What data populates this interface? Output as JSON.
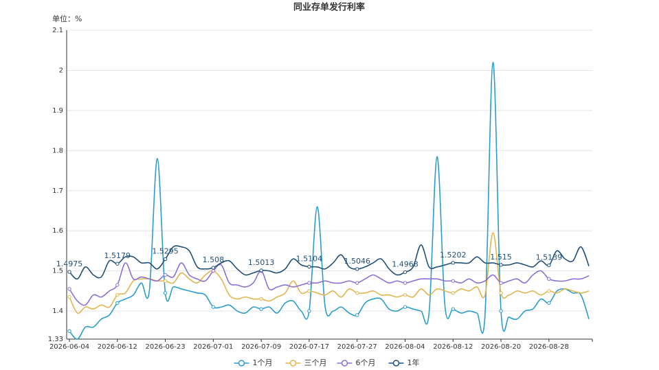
{
  "chart_data": {
    "type": "line",
    "title": "同业存单发行利率",
    "unit_label": "单位：%",
    "categories": [
      "2026-06-04",
      null,
      null,
      null,
      null,
      null,
      "2026-06-12",
      null,
      null,
      null,
      null,
      null,
      "2026-06-23",
      null,
      null,
      null,
      null,
      null,
      "2026-07-01",
      null,
      null,
      null,
      null,
      null,
      "2026-07-09",
      null,
      null,
      null,
      null,
      null,
      "2026-07-17",
      null,
      null,
      null,
      null,
      null,
      "2026-07-27",
      null,
      null,
      null,
      null,
      null,
      "2026-08-04",
      null,
      null,
      null,
      null,
      null,
      "2026-08-12",
      null,
      null,
      null,
      null,
      null,
      "2026-08-20",
      null,
      null,
      null,
      null,
      null,
      "2026-08-28",
      null,
      null,
      null,
      null,
      null
    ],
    "ylim": [
      1.33,
      2.1
    ],
    "yticks": [
      1.33,
      1.4,
      1.5,
      1.6,
      1.7,
      1.8,
      1.9,
      2,
      2.1
    ],
    "grid": true,
    "smooth": true,
    "legend": "bottom",
    "series": [
      {
        "name": "1个月",
        "color": "#2a9ccc",
        "values": [
          1.35,
          1.33,
          1.36,
          1.36,
          1.38,
          1.39,
          1.42,
          1.43,
          1.44,
          1.47,
          1.45,
          1.78,
          1.445,
          1.46,
          1.455,
          1.45,
          1.445,
          1.44,
          1.41,
          1.41,
          1.415,
          1.4,
          1.395,
          1.41,
          1.405,
          1.41,
          1.395,
          1.42,
          1.425,
          1.4,
          1.4,
          1.66,
          1.41,
          1.4,
          1.41,
          1.395,
          1.39,
          1.42,
          1.43,
          1.43,
          1.405,
          1.4,
          1.41,
          1.405,
          1.4,
          1.395,
          1.785,
          1.41,
          1.405,
          1.395,
          1.4,
          1.395,
          1.39,
          2.02,
          1.4,
          1.385,
          1.38,
          1.4,
          1.405,
          1.43,
          1.42,
          1.45,
          1.455,
          1.445,
          1.44,
          1.38
        ]
      },
      {
        "name": "三个月",
        "color": "#e2b44c",
        "values": [
          1.435,
          1.395,
          1.41,
          1.405,
          1.415,
          1.41,
          1.44,
          1.445,
          1.475,
          1.48,
          1.48,
          1.475,
          1.475,
          1.47,
          1.495,
          1.48,
          1.47,
          1.49,
          1.5,
          1.48,
          1.44,
          1.43,
          1.435,
          1.43,
          1.43,
          1.425,
          1.435,
          1.445,
          1.475,
          1.445,
          1.45,
          1.445,
          1.44,
          1.45,
          1.435,
          1.455,
          1.445,
          1.445,
          1.45,
          1.44,
          1.44,
          1.435,
          1.44,
          1.435,
          1.455,
          1.44,
          1.455,
          1.45,
          1.445,
          1.455,
          1.45,
          1.46,
          1.44,
          1.595,
          1.445,
          1.44,
          1.45,
          1.445,
          1.45,
          1.44,
          1.45,
          1.445,
          1.455,
          1.45,
          1.445,
          1.45
        ]
      },
      {
        "name": "6个月",
        "color": "#8b6fd3",
        "values": [
          1.455,
          1.425,
          1.415,
          1.44,
          1.435,
          1.45,
          1.465,
          1.52,
          1.48,
          1.485,
          1.48,
          1.475,
          1.49,
          1.485,
          1.52,
          1.49,
          1.48,
          1.475,
          1.5,
          1.515,
          1.47,
          1.465,
          1.46,
          1.47,
          1.5,
          1.455,
          1.46,
          1.465,
          1.46,
          1.465,
          1.47,
          1.47,
          1.475,
          1.47,
          1.47,
          1.475,
          1.47,
          1.48,
          1.49,
          1.48,
          1.47,
          1.475,
          1.47,
          1.475,
          1.48,
          1.48,
          1.48,
          1.475,
          1.475,
          1.47,
          1.48,
          1.47,
          1.475,
          1.49,
          1.47,
          1.475,
          1.48,
          1.47,
          1.49,
          1.5,
          1.48,
          1.475,
          1.475,
          1.48,
          1.48,
          1.488
        ]
      },
      {
        "name": "1年",
        "color": "#1f4f78",
        "values": [
          1.4975,
          1.48,
          1.51,
          1.49,
          1.485,
          1.525,
          1.5179,
          1.535,
          1.535,
          1.52,
          1.52,
          1.505,
          1.5295,
          1.56,
          1.56,
          1.55,
          1.51,
          1.505,
          1.508,
          1.52,
          1.525,
          1.505,
          1.49,
          1.495,
          1.5013,
          1.5,
          1.495,
          1.505,
          1.53,
          1.515,
          1.5104,
          1.51,
          1.505,
          1.52,
          1.54,
          1.51,
          1.5046,
          1.51,
          1.52,
          1.53,
          1.505,
          1.49,
          1.4968,
          1.51,
          1.565,
          1.51,
          1.51,
          1.515,
          1.5202,
          1.52,
          1.52,
          1.535,
          1.52,
          1.52,
          1.515,
          1.515,
          1.52,
          1.515,
          1.51,
          1.525,
          1.5139,
          1.55,
          1.53,
          1.525,
          1.56,
          1.512
        ]
      }
    ]
  }
}
